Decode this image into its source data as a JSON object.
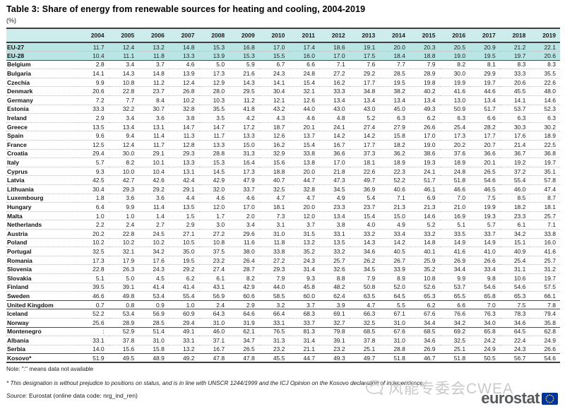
{
  "title": "Table 3: Share of energy from renewable sources for heating and cooling, 2004-2019",
  "subtitle": "(%)",
  "table": {
    "columns": [
      "2004",
      "2005",
      "2006",
      "2007",
      "2008",
      "2009",
      "2010",
      "2011",
      "2012",
      "2013",
      "2014",
      "2015",
      "2016",
      "2017",
      "2018",
      "2019"
    ],
    "rows": [
      {
        "name": "EU-27",
        "highlight": true,
        "values": [
          "11.7",
          "12.4",
          "13.2",
          "14.8",
          "15.3",
          "16.8",
          "17.0",
          "17.4",
          "18.6",
          "19.1",
          "20.0",
          "20.3",
          "20.5",
          "20.9",
          "21.2",
          "22.1"
        ]
      },
      {
        "name": "EU-28",
        "highlight": true,
        "divider_after": true,
        "values": [
          "10.4",
          "11.1",
          "11.8",
          "13.3",
          "13.9",
          "15.3",
          "15.5",
          "16.0",
          "17.0",
          "17.5",
          "18.4",
          "18.8",
          "19.0",
          "19.5",
          "19.7",
          "20.6"
        ]
      },
      {
        "name": "Belgium",
        "values": [
          "2.8",
          "3.4",
          "3.7",
          "4.6",
          "5.0",
          "5.9",
          "6.7",
          "6.6",
          "7.1",
          "7.6",
          "7.7",
          "7.9",
          "8.2",
          "8.1",
          "8.3",
          "8.3"
        ]
      },
      {
        "name": "Bulgaria",
        "values": [
          "14.1",
          "14.3",
          "14.8",
          "13.9",
          "17.3",
          "21.6",
          "24.3",
          "24.8",
          "27.2",
          "29.2",
          "28.5",
          "28.9",
          "30.0",
          "29.9",
          "33.3",
          "35.5"
        ]
      },
      {
        "name": "Czechia",
        "values": [
          "9.9",
          "10.8",
          "11.2",
          "12.4",
          "12.9",
          "14.3",
          "14.1",
          "15.4",
          "16.2",
          "17.7",
          "19.5",
          "19.8",
          "19.9",
          "19.7",
          "20.6",
          "22.6"
        ]
      },
      {
        "name": "Denmark",
        "values": [
          "20.6",
          "22.8",
          "23.7",
          "26.8",
          "28.0",
          "29.5",
          "30.4",
          "32.1",
          "33.3",
          "34.8",
          "38.2",
          "40.2",
          "41.6",
          "44.6",
          "45.5",
          "48.0"
        ]
      },
      {
        "name": "Germany",
        "values": [
          "7.2",
          "7.7",
          "8.4",
          "10.2",
          "10.3",
          "11.2",
          "12.1",
          "12.6",
          "13.4",
          "13.4",
          "13.4",
          "13.4",
          "13.0",
          "13.4",
          "14.1",
          "14.6"
        ]
      },
      {
        "name": "Estonia",
        "values": [
          "33.3",
          "32.2",
          "30.7",
          "32.8",
          "35.5",
          "41.8",
          "43.2",
          "44.0",
          "43.0",
          "43.0",
          "45.0",
          "49.3",
          "50.9",
          "51.7",
          "53.7",
          "52.3"
        ]
      },
      {
        "name": "Ireland",
        "values": [
          "2.9",
          "3.4",
          "3.6",
          "3.8",
          "3.5",
          "4.2",
          "4.3",
          "4.6",
          "4.8",
          "5.2",
          "6.3",
          "6.2",
          "6.3",
          "6.6",
          "6.3",
          "6.3"
        ]
      },
      {
        "name": "Greece",
        "values": [
          "13.5",
          "13.4",
          "13.1",
          "14.7",
          "14.7",
          "17.2",
          "18.7",
          "20.1",
          "24.1",
          "27.4",
          "27.9",
          "26.6",
          "25.4",
          "28.2",
          "30.3",
          "30.2"
        ]
      },
      {
        "name": "Spain",
        "values": [
          "9.6",
          "9.4",
          "11.4",
          "11.3",
          "11.7",
          "13.3",
          "12.6",
          "13.7",
          "14.2",
          "14.2",
          "15.8",
          "17.0",
          "17.3",
          "17.7",
          "17.6",
          "18.9"
        ]
      },
      {
        "name": "France",
        "values": [
          "12.5",
          "12.4",
          "11.7",
          "12.8",
          "13.3",
          "15.0",
          "16.2",
          "15.4",
          "16.7",
          "17.7",
          "18.2",
          "19.0",
          "20.2",
          "20.7",
          "21.4",
          "22.5"
        ]
      },
      {
        "name": "Croatia",
        "values": [
          "29.4",
          "30.0",
          "29.1",
          "29.3",
          "28.8",
          "31.3",
          "32.9",
          "33.8",
          "36.6",
          "37.3",
          "36.2",
          "38.6",
          "37.6",
          "36.6",
          "36.7",
          "36.8"
        ]
      },
      {
        "name": "Italy",
        "values": [
          "5.7",
          "8.2",
          "10.1",
          "13.3",
          "15.3",
          "16.4",
          "15.6",
          "13.8",
          "17.0",
          "18.1",
          "18.9",
          "19.3",
          "18.9",
          "20.1",
          "19.2",
          "19.7"
        ]
      },
      {
        "name": "Cyprus",
        "values": [
          "9.3",
          "10.0",
          "10.4",
          "13.1",
          "14.5",
          "17.3",
          "18.8",
          "20.0",
          "21.8",
          "22.6",
          "22.3",
          "24.1",
          "24.8",
          "26.5",
          "37.2",
          "35.1"
        ]
      },
      {
        "name": "Latvia",
        "values": [
          "42.5",
          "42.7",
          "42.6",
          "42.4",
          "42.9",
          "47.9",
          "40.7",
          "44.7",
          "47.3",
          "49.7",
          "52.2",
          "51.7",
          "51.8",
          "54.6",
          "55.4",
          "57.8"
        ]
      },
      {
        "name": "Lithuania",
        "values": [
          "30.4",
          "29.3",
          "29.2",
          "29.1",
          "32.0",
          "33.7",
          "32.5",
          "32.8",
          "34.5",
          "36.9",
          "40.6",
          "46.1",
          "46.6",
          "46.5",
          "46.0",
          "47.4"
        ]
      },
      {
        "name": "Luxembourg",
        "values": [
          "1.8",
          "3.6",
          "3.6",
          "4.4",
          "4.6",
          "4.6",
          "4.7",
          "4.7",
          "4.9",
          "5.4",
          "7.1",
          "6.9",
          "7.0",
          "7.5",
          "8.5",
          "8.7"
        ]
      },
      {
        "name": "Hungary",
        "values": [
          "6.4",
          "9.9",
          "11.4",
          "13.5",
          "12.0",
          "17.0",
          "18.1",
          "20.0",
          "23.3",
          "23.7",
          "21.3",
          "21.3",
          "21.0",
          "19.9",
          "18.2",
          "18.1"
        ]
      },
      {
        "name": "Malta",
        "values": [
          "1.0",
          "1.0",
          "1.4",
          "1.5",
          "1.7",
          "2.0",
          "7.3",
          "12.0",
          "13.4",
          "15.4",
          "15.0",
          "14.6",
          "16.9",
          "19.3",
          "23.3",
          "25.7"
        ]
      },
      {
        "name": "Netherlands",
        "values": [
          "2.2",
          "2.4",
          "2.7",
          "2.9",
          "3.0",
          "3.4",
          "3.1",
          "3.7",
          "3.8",
          "4.0",
          "4.9",
          "5.2",
          "5.1",
          "5.7",
          "6.1",
          "7.1"
        ]
      },
      {
        "name": "Austria",
        "values": [
          "20.2",
          "22.8",
          "24.5",
          "27.1",
          "27.2",
          "29.6",
          "31.0",
          "31.5",
          "33.1",
          "33.2",
          "33.4",
          "33.2",
          "33.5",
          "33.7",
          "34.2",
          "33.8"
        ]
      },
      {
        "name": "Poland",
        "values": [
          "10.2",
          "10.2",
          "10.2",
          "10.5",
          "10.8",
          "11.6",
          "11.8",
          "13.2",
          "13.5",
          "14.3",
          "14.2",
          "14.8",
          "14.9",
          "14.9",
          "15.1",
          "16.0"
        ]
      },
      {
        "name": "Portugal",
        "values": [
          "32.5",
          "32.1",
          "34.2",
          "35.0",
          "37.5",
          "38.0",
          "33.8",
          "35.2",
          "33.2",
          "34.6",
          "40.5",
          "40.1",
          "41.6",
          "41.0",
          "40.9",
          "41.6"
        ]
      },
      {
        "name": "Romania",
        "values": [
          "17.3",
          "17.9",
          "17.6",
          "19.5",
          "23.2",
          "26.4",
          "27.2",
          "24.3",
          "25.7",
          "26.2",
          "26.7",
          "25.9",
          "26.9",
          "26.6",
          "25.4",
          "25.7"
        ]
      },
      {
        "name": "Slovenia",
        "values": [
          "22.8",
          "26.3",
          "24.3",
          "29.2",
          "27.4",
          "28.7",
          "29.3",
          "31.4",
          "32.6",
          "34.5",
          "33.9",
          "35.2",
          "34.4",
          "33.4",
          "31.1",
          "31.2"
        ]
      },
      {
        "name": "Slovakia",
        "values": [
          "5.1",
          "5.0",
          "4.5",
          "6.2",
          "6.1",
          "8.2",
          "7.9",
          "9.3",
          "8.8",
          "7.9",
          "8.9",
          "10.8",
          "9.9",
          "9.8",
          "10.6",
          "19.7"
        ]
      },
      {
        "name": "Finland",
        "values": [
          "39.5",
          "39.1",
          "41.4",
          "41.4",
          "43.1",
          "42.9",
          "44.0",
          "45.8",
          "48.2",
          "50.8",
          "52.0",
          "52.6",
          "53.7",
          "54.6",
          "54.6",
          "57.5"
        ]
      },
      {
        "name": "Sweden",
        "divider_after": true,
        "values": [
          "46.6",
          "49.8",
          "53.4",
          "55.4",
          "56.9",
          "60.6",
          "58.5",
          "60.0",
          "62.4",
          "63.5",
          "64.5",
          "65.3",
          "65.5",
          "65.8",
          "65.3",
          "66.1"
        ]
      },
      {
        "name": "United Kingdom",
        "divider_after": true,
        "values": [
          "0.7",
          "0.8",
          "0.9",
          "1.0",
          "2.4",
          "2.9",
          "3.2",
          "3.7",
          "3.9",
          "4.7",
          "5.5",
          "6.2",
          "6.6",
          "7.0",
          "7.5",
          "7.8"
        ]
      },
      {
        "name": "Iceland",
        "values": [
          "52.2",
          "53.4",
          "56.9",
          "60.9",
          "64.3",
          "64.6",
          "66.4",
          "68.3",
          "69.1",
          "66.3",
          "67.1",
          "67.6",
          "76.6",
          "76.3",
          "78.3",
          "79.4"
        ]
      },
      {
        "name": "Norway",
        "divider_after": true,
        "values": [
          "25.6",
          "28.9",
          "28.5",
          "29.4",
          "31.0",
          "31.9",
          "33.1",
          "33.7",
          "32.7",
          "32.5",
          "31.0",
          "34.4",
          "34.2",
          "34.0",
          "34.6",
          "35.8"
        ]
      },
      {
        "name": "Montenegro",
        "values": [
          ":",
          "52.9",
          "51.4",
          "49.1",
          "46.0",
          "62.1",
          "76.5",
          "81.3",
          "79.8",
          "68.5",
          "67.6",
          "68.5",
          "69.2",
          "65.8",
          "64.5",
          "62.8"
        ]
      },
      {
        "name": "Albania",
        "values": [
          "33.1",
          "37.8",
          "31.0",
          "33.1",
          "37.1",
          "34.7",
          "31.3",
          "31.4",
          "39.1",
          "37.8",
          "31.0",
          "34.6",
          "32.5",
          "24.2",
          "22.4",
          "24.9"
        ]
      },
      {
        "name": "Serbia",
        "divider_after": true,
        "values": [
          "14.0",
          "15.6",
          "15.8",
          "13.2",
          "16.7",
          "26.5",
          "23.2",
          "21.1",
          "23.2",
          "25.1",
          "28.8",
          "26.9",
          "25.1",
          "24.9",
          "24.3",
          "26.6"
        ]
      },
      {
        "name": "Kosovo*",
        "table_end": true,
        "values": [
          "51.9",
          "49.5",
          "48.9",
          "49.2",
          "47.8",
          "47.8",
          "45.5",
          "44.7",
          "49.3",
          "49.7",
          "51.8",
          "46.7",
          "51.8",
          "50.5",
          "56.7",
          "54.6"
        ]
      }
    ]
  },
  "notes": {
    "availability": "Note: \":\" means data not available",
    "footnote": "* This designation is without prejudice to positions on status, and is in line with UNSCR 1244/1999 and the ICJ Opinion on the Kosovo declaration of independence.",
    "source_label": "Source:",
    "source_text": "Eurostat (online data code: nrg_ind_ren)"
  },
  "watermark": {
    "text": "风能专委会CWEA"
  },
  "logo": {
    "text": "eurostat"
  },
  "colors": {
    "header_bg": "#cdeceb",
    "eu_row_bg": "#b9e5e4",
    "border_dark": "#3f3f3f",
    "row_separator": "#bcbcbc",
    "logo_gray": "#58595b",
    "eu_flag_blue": "#003399",
    "star_yellow": "#ffcc00",
    "watermark_gray": "#c9c9c9"
  }
}
